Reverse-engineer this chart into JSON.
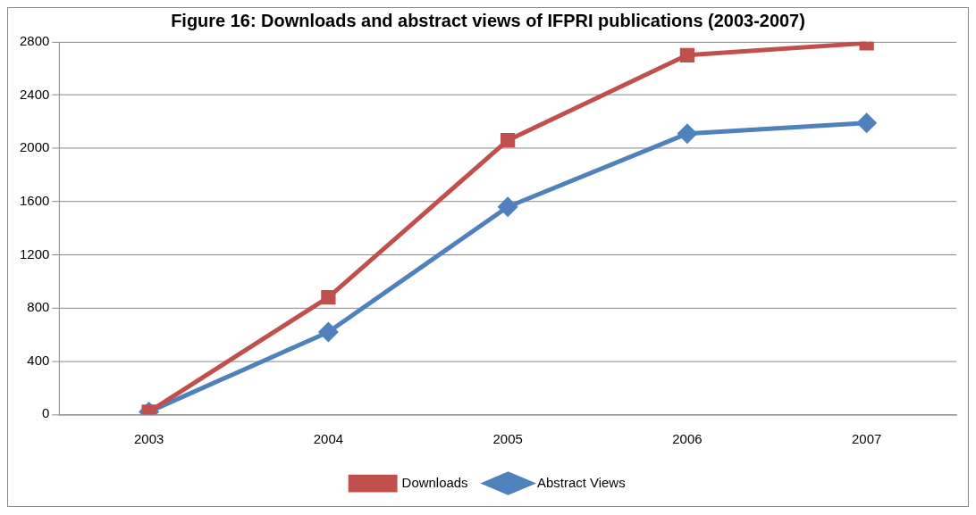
{
  "chart_data": {
    "type": "line",
    "title": "Figure 16: Downloads and abstract views of IFPRI publications (2003-2007)",
    "categories": [
      "2003",
      "2004",
      "2005",
      "2006",
      "2007"
    ],
    "series": [
      {
        "name": "Abstract Views",
        "color": "#4f81bd",
        "marker": "diamond",
        "values": [
          20,
          620,
          1560,
          2110,
          2190
        ]
      },
      {
        "name": "Downloads",
        "color": "#c0504d",
        "marker": "square",
        "values": [
          20,
          880,
          2060,
          2700,
          2790
        ]
      }
    ],
    "ylim": [
      0,
      2800
    ],
    "yticks": [
      0,
      400,
      800,
      1200,
      1600,
      2000,
      2400,
      2800
    ],
    "grid": "y",
    "legend": "bottom"
  }
}
